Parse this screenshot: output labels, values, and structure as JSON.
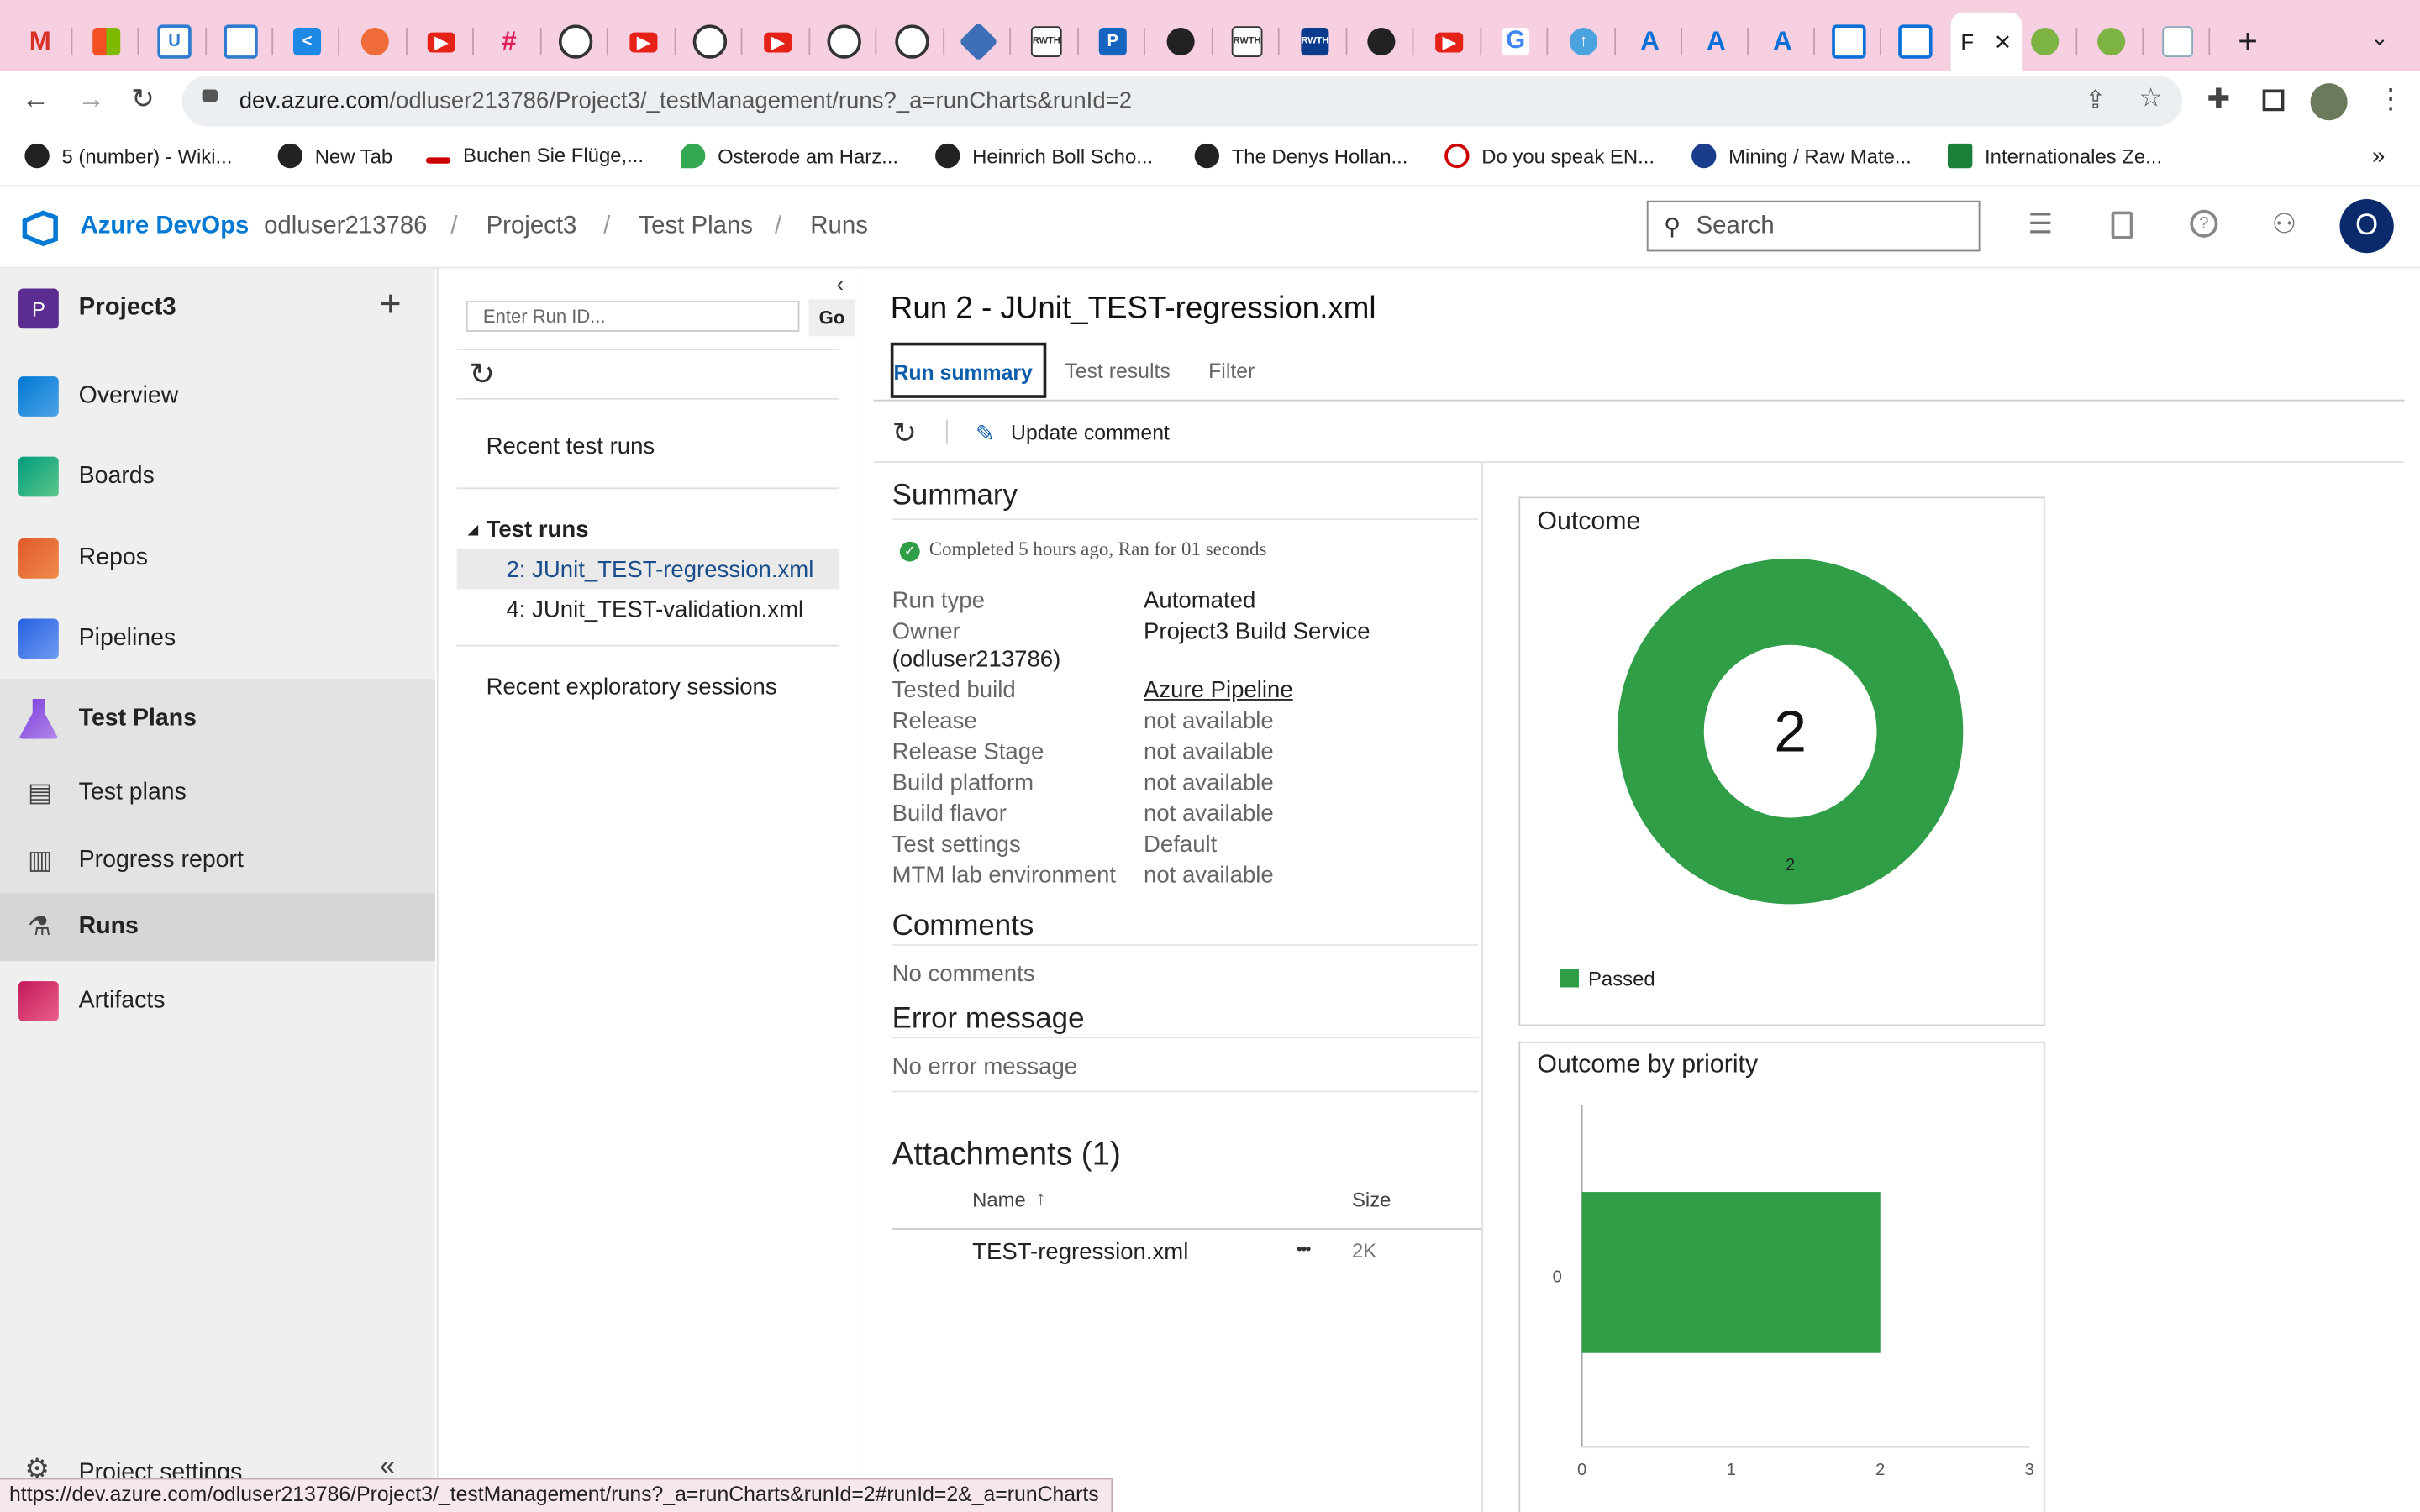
{
  "browser": {
    "active_tab_title": "F",
    "url_host": "dev.azure.com",
    "url_path": "/odluser213786/Project3/_testManagement/runs?_a=runCharts&runId=2",
    "bookmarks": [
      "5 (number) - Wiki...",
      "New Tab",
      "Buchen Sie Flüge,...",
      "Osterode am Harz...",
      "Heinrich Boll Scho...",
      "The Denys Hollan...",
      "Do you speak EN...",
      "Mining / Raw Mate...",
      "Internationales Ze..."
    ],
    "bookmarks_more": "»",
    "status_url": "https://dev.azure.com/odluser213786/Project3/_testManagement/runs?_a=runCharts&runId=2#runId=2&_a=runCharts"
  },
  "header": {
    "brand": "Azure DevOps",
    "org": "odluser213786",
    "crumbs": [
      "Project3",
      "Test Plans",
      "Runs"
    ],
    "search_placeholder": "Search",
    "avatar_initial": "O"
  },
  "sidebar": {
    "project_initial": "P",
    "project_name": "Project3",
    "items": [
      "Overview",
      "Boards",
      "Repos",
      "Pipelines",
      "Test Plans",
      "Test plans",
      "Progress report",
      "Runs",
      "Artifacts"
    ],
    "settings": "Project settings"
  },
  "midpane": {
    "run_id_placeholder": "Enter Run ID...",
    "go": "Go",
    "recent_test_runs": "Recent test runs",
    "test_runs_header": "Test runs",
    "runs": [
      "2: JUnit_TEST-regression.xml",
      "4: JUnit_TEST-validation.xml"
    ],
    "recent_exploratory": "Recent exploratory sessions"
  },
  "content": {
    "title": "Run 2 - JUnit_TEST-regression.xml",
    "tabs": [
      "Run summary",
      "Test results",
      "Filter"
    ],
    "update_comment": "Update comment",
    "summary_heading": "Summary",
    "completed": "Completed 5 hours ago, Ran for 01 seconds",
    "fields": [
      {
        "label": "Run type",
        "value": "Automated"
      },
      {
        "label": "Owner",
        "value": "Project3 Build Service"
      },
      {
        "label": "Tested build",
        "value": "Azure Pipeline"
      },
      {
        "label": "Release",
        "value": "not available"
      },
      {
        "label": "Release Stage",
        "value": "not available"
      },
      {
        "label": "Build platform",
        "value": "not available"
      },
      {
        "label": "Build flavor",
        "value": "not available"
      },
      {
        "label": "Test settings",
        "value": "Default"
      },
      {
        "label": "MTM lab environment",
        "value": "not available"
      }
    ],
    "owner_extra": "(odluser213786)",
    "comments_heading": "Comments",
    "no_comments": "No comments",
    "error_heading": "Error message",
    "no_error": "No error message",
    "attachments_heading": "Attachments (1)",
    "att_col_name": "Name",
    "att_sort": "↑",
    "att_col_size": "Size",
    "att_file": "TEST-regression.xml",
    "att_more": "•••",
    "att_size": "2K"
  },
  "colors": {
    "passed": "#2f9e47",
    "ado_blue": "#0078d4"
  },
  "chart_data": [
    {
      "type": "pie",
      "title": "Outcome",
      "center_label": "2",
      "categories": [
        "Passed"
      ],
      "values": [
        2
      ],
      "slice_labels": [
        "2"
      ],
      "legend": [
        "Passed"
      ],
      "legend_position": "bottom-left"
    },
    {
      "type": "bar",
      "title": "Outcome by priority",
      "orientation": "horizontal",
      "categories": [
        "0"
      ],
      "series": [
        {
          "name": "Passed",
          "values": [
            2
          ]
        }
      ],
      "xlim": [
        0,
        3
      ],
      "xticks": [
        "0",
        "1",
        "2",
        "3"
      ]
    }
  ]
}
